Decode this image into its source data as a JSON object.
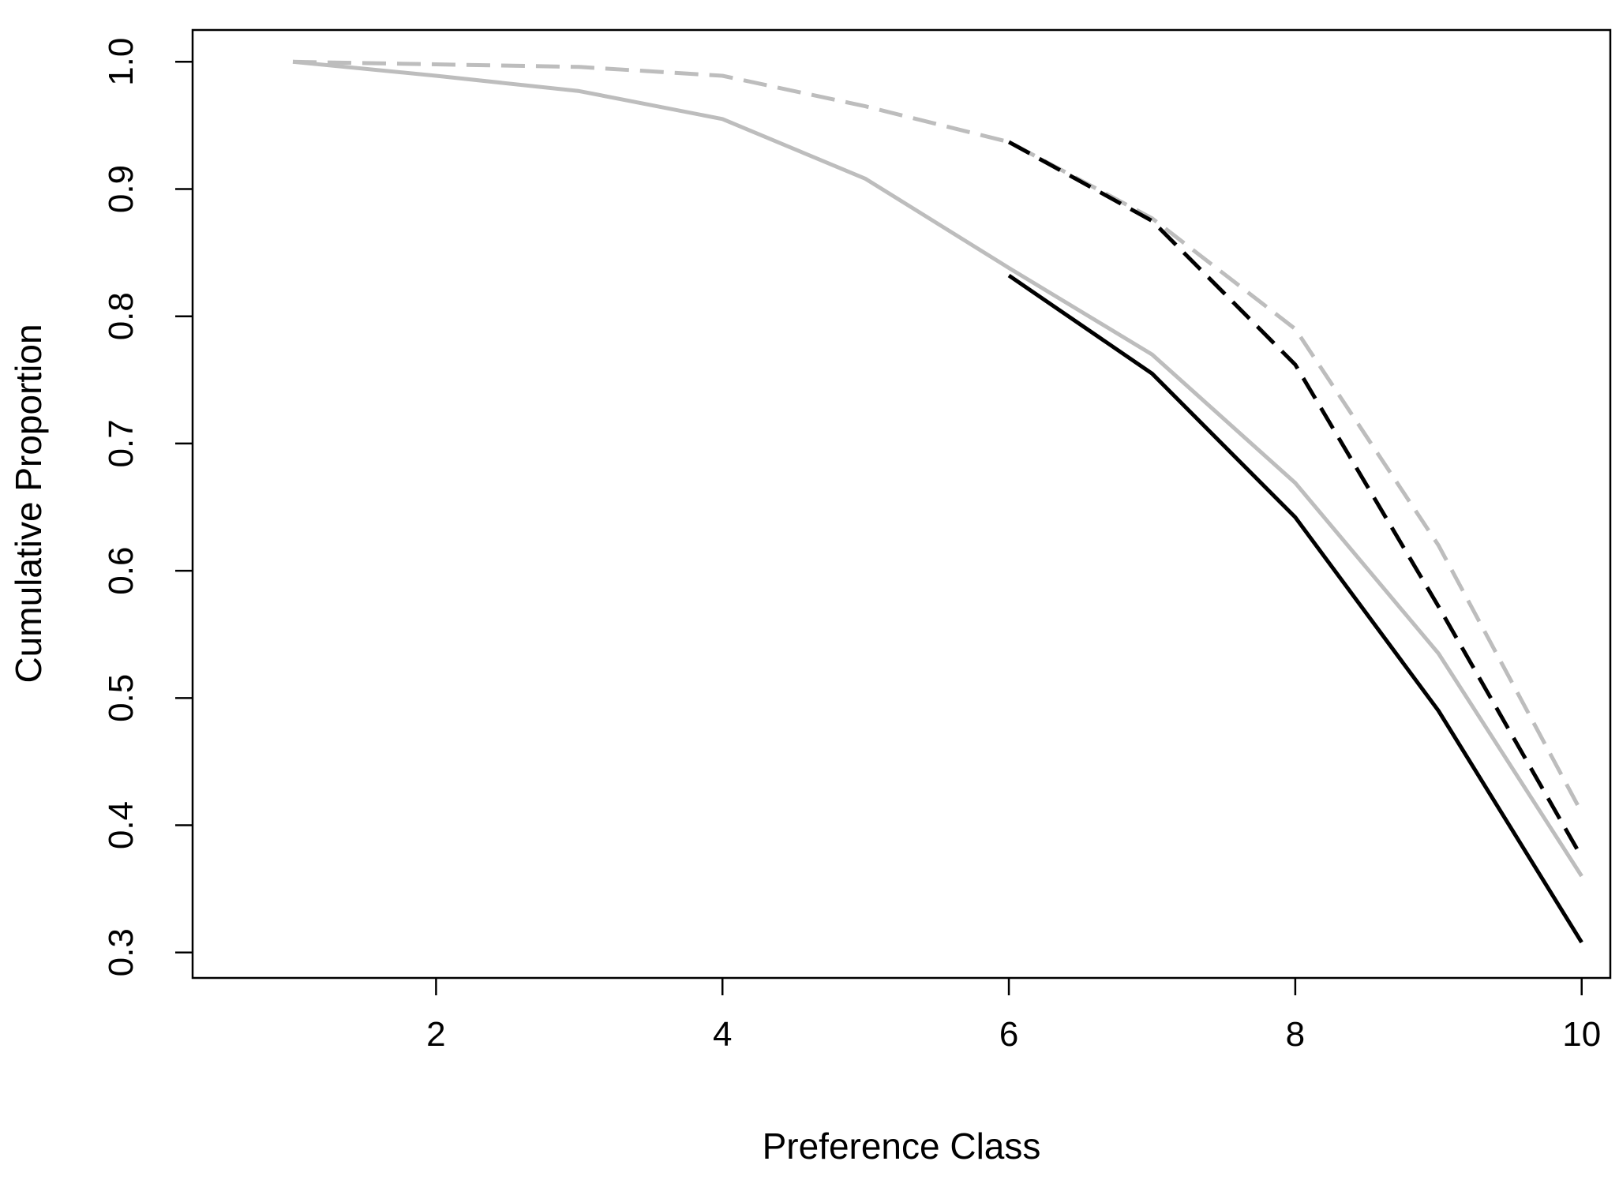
{
  "chart_data": {
    "type": "line",
    "xlabel": "Preference Class",
    "ylabel": "Cumulative Proportion",
    "xlim": [
      0.3,
      10.2
    ],
    "ylim": [
      0.28,
      1.025
    ],
    "xticks": [
      2,
      4,
      6,
      8,
      10
    ],
    "xtick_labels": [
      "2",
      "4",
      "6",
      "8",
      "10"
    ],
    "yticks": [
      0.3,
      0.4,
      0.5,
      0.6,
      0.7,
      0.8,
      0.9,
      1.0
    ],
    "ytick_labels": [
      "0.3",
      "0.4",
      "0.5",
      "0.6",
      "0.7",
      "0.8",
      "0.9",
      "1.0"
    ],
    "grid": false,
    "legend": "none",
    "series": [
      {
        "color": "#bdbdbd",
        "style": "dashed",
        "x": [
          1,
          2,
          3,
          4,
          5,
          6,
          7,
          8,
          9,
          10
        ],
        "y": [
          1.0,
          0.998,
          0.996,
          0.989,
          0.965,
          0.937,
          0.877,
          0.79,
          0.62,
          0.41
        ]
      },
      {
        "color": "#000000",
        "style": "dashed",
        "x": [
          6,
          7,
          8,
          9,
          10
        ],
        "y": [
          0.937,
          0.875,
          0.762,
          0.572,
          0.375
        ]
      },
      {
        "color": "#bdbdbd",
        "style": "solid",
        "x": [
          1,
          2,
          3,
          4,
          5,
          6,
          7,
          8,
          9,
          10
        ],
        "y": [
          1.0,
          0.989,
          0.977,
          0.955,
          0.908,
          0.838,
          0.77,
          0.669,
          0.535,
          0.36
        ]
      },
      {
        "color": "#000000",
        "style": "solid",
        "x": [
          6,
          7,
          8,
          9,
          10
        ],
        "y": [
          0.832,
          0.755,
          0.642,
          0.49,
          0.308
        ]
      }
    ]
  }
}
